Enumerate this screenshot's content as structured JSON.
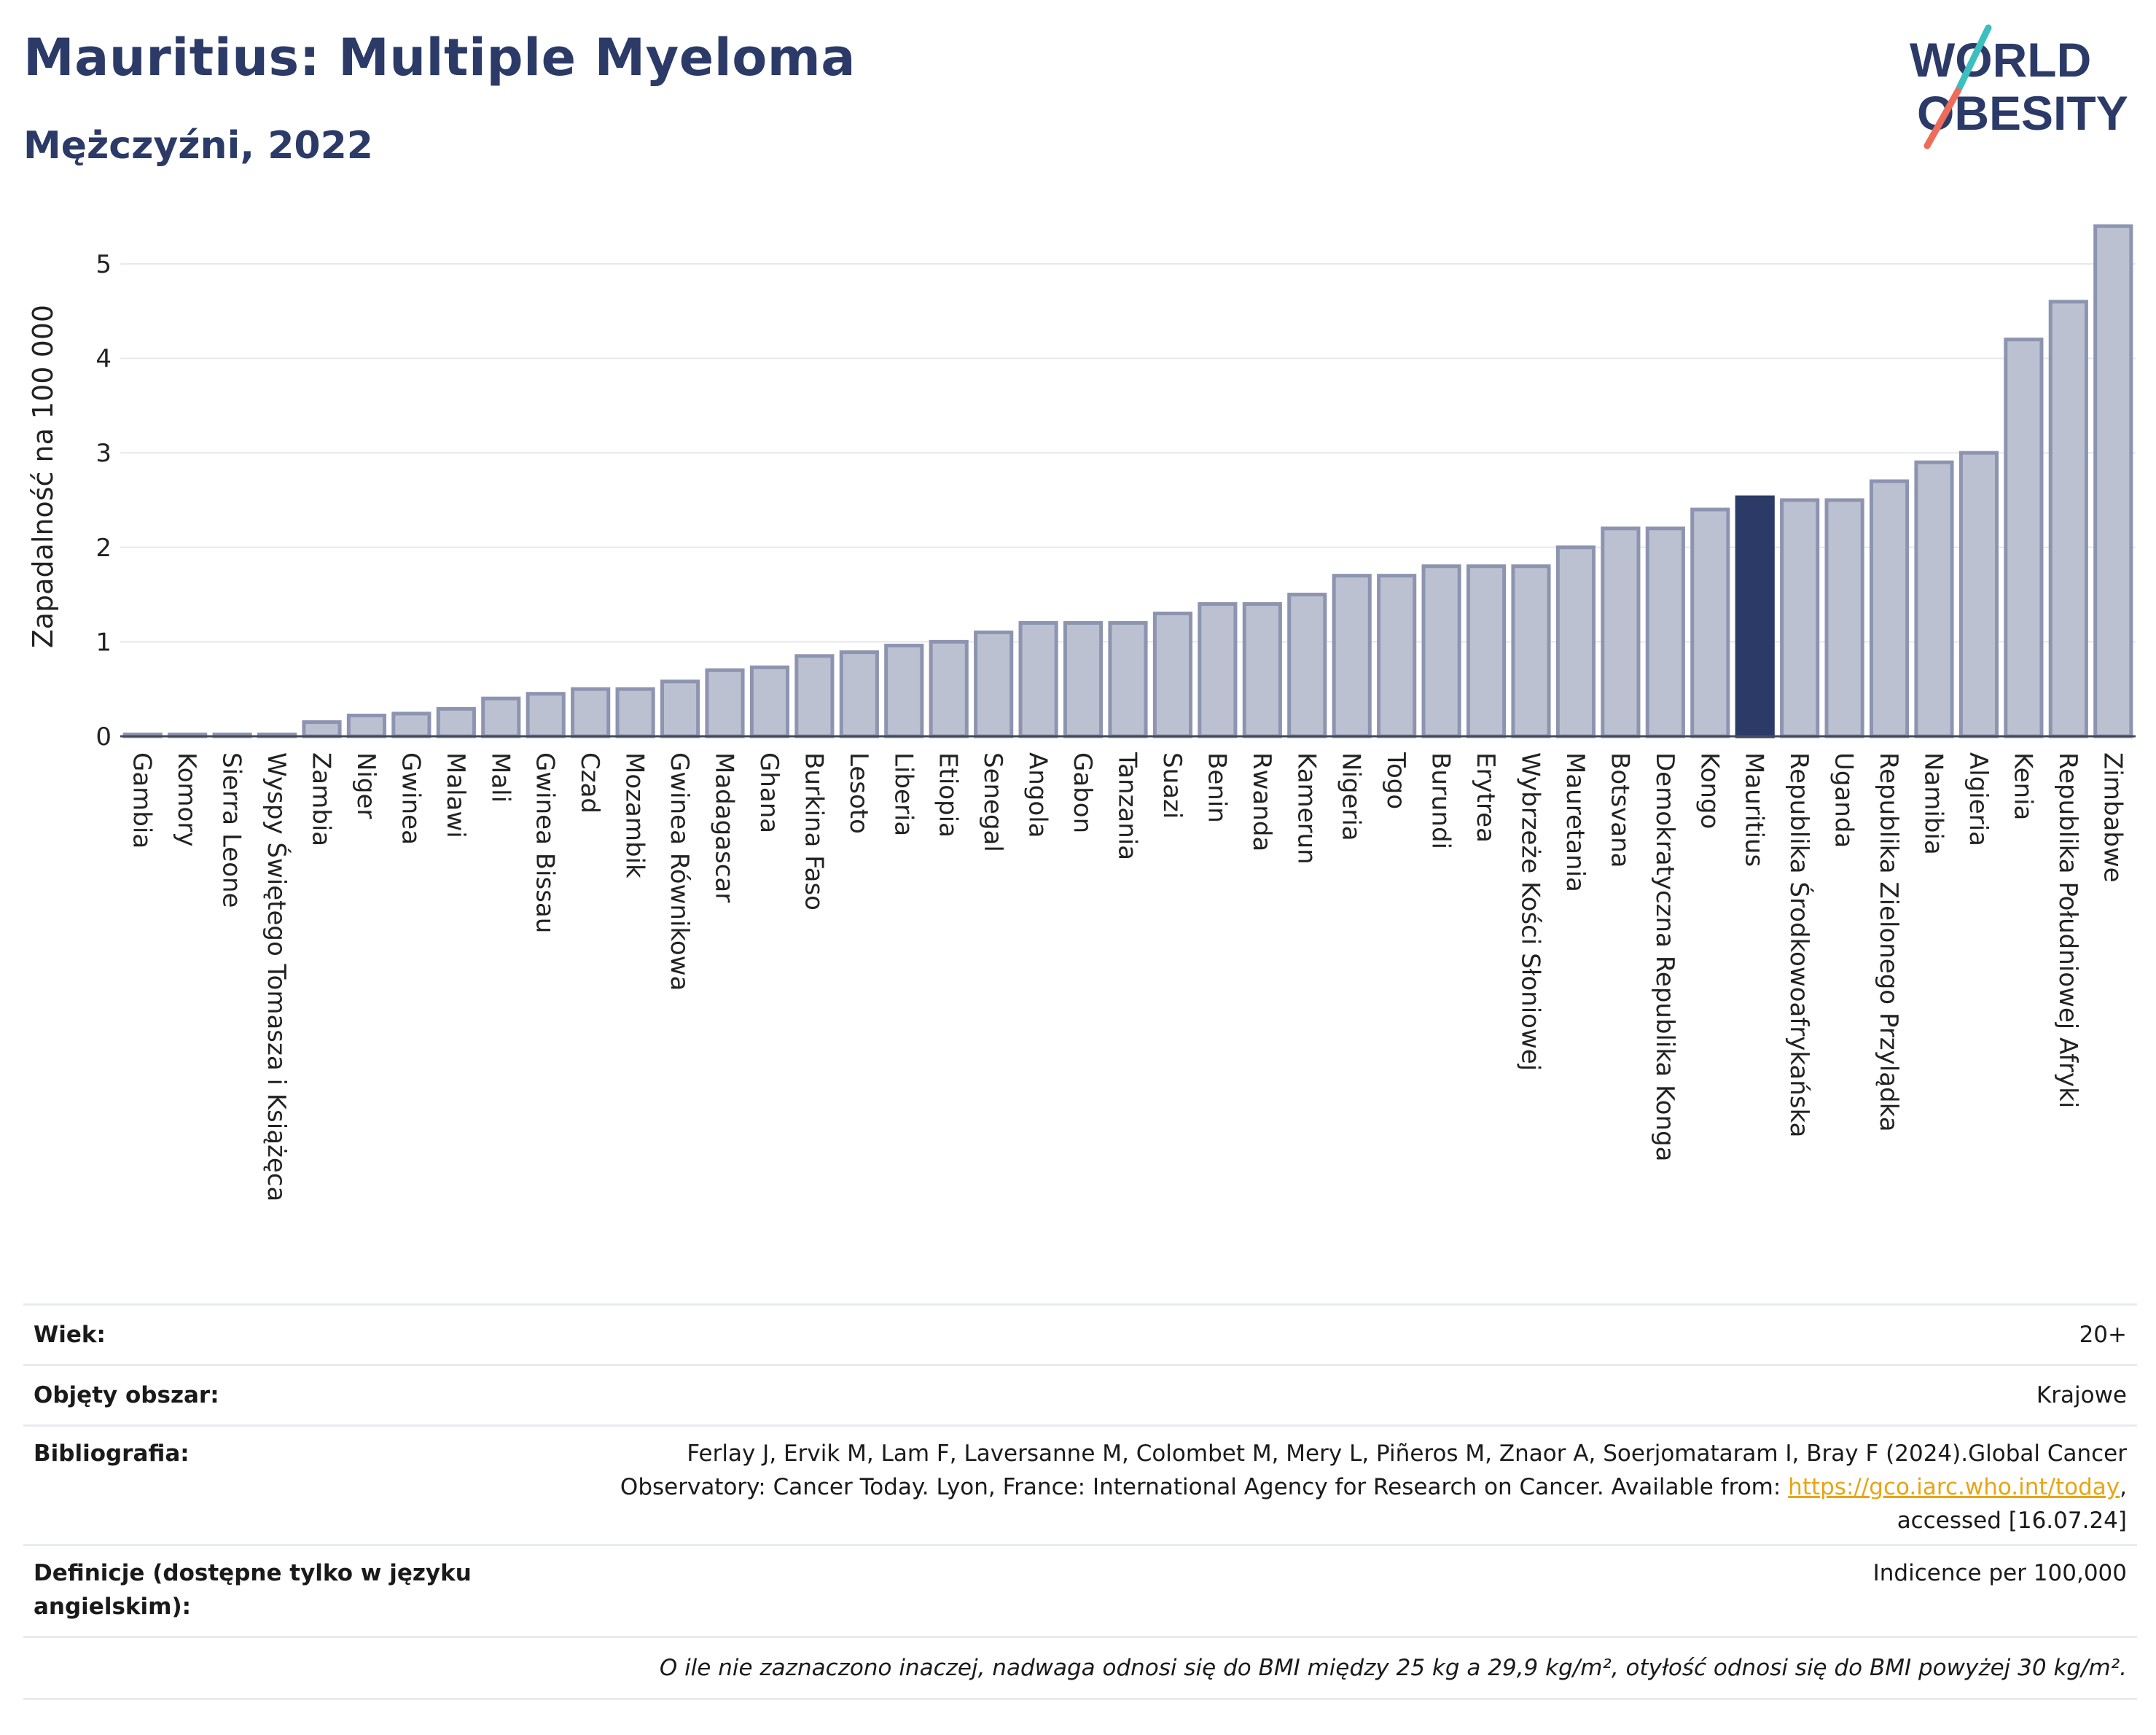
{
  "header": {
    "title": "Mauritius: Multiple Myeloma",
    "subtitle": "Mężczyźni, 2022",
    "logo_line1": "WORLD",
    "logo_line2": "OBESITY"
  },
  "colors": {
    "bar": "#bcc1d1",
    "bar_stroke": "#8d94b0",
    "highlight": "#2b3a67",
    "title": "#2b3a67",
    "logo_teal": "#3bbfbf",
    "logo_coral": "#ef6b5a",
    "link": "#e8a515"
  },
  "chart_data": {
    "type": "bar",
    "title": "Mauritius: Multiple Myeloma",
    "subtitle": "Mężczyźni, 2022",
    "ylabel": "Zapadalność na 100 000",
    "xlabel": "",
    "ylim": [
      0,
      5.5
    ],
    "yticks": [
      0,
      1,
      2,
      3,
      4,
      5
    ],
    "grid": true,
    "highlight": "Mauritius",
    "categories": [
      "Gambia",
      "Komory",
      "Sierra Leone",
      "Wyspy Świętego Tomasza i Książęca",
      "Zambia",
      "Niger",
      "Gwinea",
      "Malawi",
      "Mali",
      "Gwinea Bissau",
      "Czad",
      "Mozambik",
      "Gwinea Równikowa",
      "Madagascar",
      "Ghana",
      "Burkina Faso",
      "Lesoto",
      "Liberia",
      "Etiopia",
      "Senegal",
      "Angola",
      "Gabon",
      "Tanzania",
      "Suazi",
      "Benin",
      "Rwanda",
      "Kamerun",
      "Nigeria",
      "Togo",
      "Burundi",
      "Erytrea",
      "Wybrzeże Kości Słoniowej",
      "Mauretania",
      "Botsvana",
      "Demokratyczna Republika Konga",
      "Kongo",
      "Mauritius",
      "Republika Środkowoafrykańska",
      "Uganda",
      "Republika Zielonego Przylądka",
      "Namibia",
      "Algieria",
      "Kenia",
      "Republika Południowej Afryki",
      "Zimbabwe"
    ],
    "values": [
      0.02,
      0.02,
      0.02,
      0.02,
      0.15,
      0.22,
      0.24,
      0.29,
      0.4,
      0.45,
      0.5,
      0.5,
      0.58,
      0.7,
      0.73,
      0.85,
      0.89,
      0.96,
      1.0,
      1.1,
      1.2,
      1.2,
      1.2,
      1.3,
      1.4,
      1.4,
      1.5,
      1.7,
      1.7,
      1.8,
      1.8,
      1.8,
      2.0,
      2.2,
      2.2,
      2.4,
      2.53,
      2.5,
      2.5,
      2.7,
      2.9,
      3.0,
      4.2,
      4.6,
      5.4
    ]
  },
  "meta": {
    "age_label": "Wiek:",
    "age_value": "20+",
    "coverage_label": "Objęty obszar:",
    "coverage_value": "Krajowe",
    "biblio_label": "Bibliografia:",
    "biblio_line1": "Ferlay J, Ervik M, Lam F, Laversanne M, Colombet M, Mery L, Piñeros M, Znaor A, Soerjomataram I, Bray F (2024).Global Cancer",
    "biblio_line2_pre": "Observatory: Cancer Today. Lyon, France: International Agency for Research on Cancer. Available from: ",
    "biblio_link": "https://gco.iarc.who.int/today",
    "biblio_line2_post": ",",
    "biblio_line3": "accessed [16.07.24]",
    "def_label": "Definicje (dostępne tylko w języku angielskim):",
    "def_value": "Indicence per 100,000",
    "footnote": "O ile nie zaznaczono inaczej, nadwaga odnosi się do BMI między 25 kg a 29,9 kg/m², otyłość odnosi się do BMI powyżej 30 kg/m²."
  }
}
